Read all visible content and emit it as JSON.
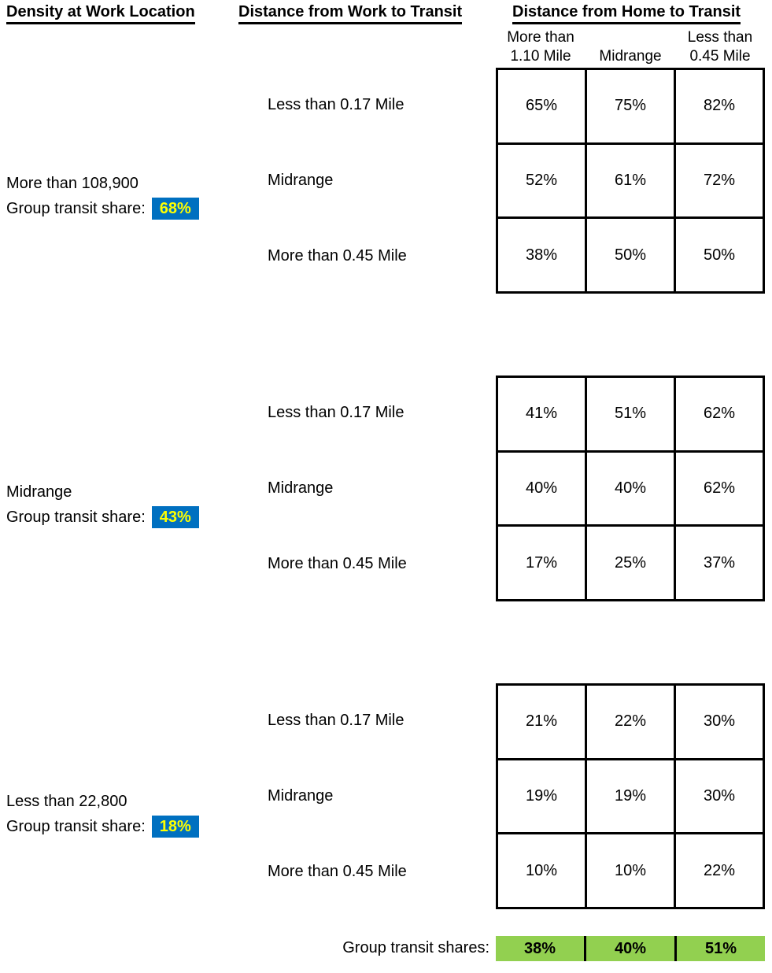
{
  "headers": {
    "density": "Density at Work Location",
    "work_transit": "Distance from Work to Transit",
    "home_transit": "Distance from Home to Transit"
  },
  "home_transit_columns": [
    {
      "line1": "More than",
      "line2": "1.10 Mile"
    },
    {
      "line1": "",
      "line2": "Midrange"
    },
    {
      "line1": "Less than",
      "line2": "0.45 Mile"
    }
  ],
  "work_transit_rows": [
    "Less than 0.17 Mile",
    "Midrange",
    "More than 0.45 Mile"
  ],
  "groups": [
    {
      "density_label": "More than 108,900",
      "share_label": "Group transit share:",
      "share_value": "68%",
      "matrix": [
        [
          "65%",
          "75%",
          "82%"
        ],
        [
          "52%",
          "61%",
          "72%"
        ],
        [
          "38%",
          "50%",
          "50%"
        ]
      ]
    },
    {
      "density_label": "Midrange",
      "share_label": "Group transit share:",
      "share_value": "43%",
      "matrix": [
        [
          "41%",
          "51%",
          "62%"
        ],
        [
          "40%",
          "40%",
          "62%"
        ],
        [
          "17%",
          "25%",
          "37%"
        ]
      ]
    },
    {
      "density_label": "Less than 22,800",
      "share_label": "Group transit share:",
      "share_value": "18%",
      "matrix": [
        [
          "21%",
          "22%",
          "30%"
        ],
        [
          "19%",
          "19%",
          "30%"
        ],
        [
          "10%",
          "10%",
          "22%"
        ]
      ]
    }
  ],
  "footer": {
    "label": "Group transit shares:",
    "values": [
      "38%",
      "40%",
      "51%"
    ]
  },
  "colors": {
    "badge_bg": "#0070C0",
    "badge_text": "#FFFF00",
    "footer_cell_bg": "#92D050",
    "border": "#000000"
  },
  "chart_data": {
    "type": "table",
    "group_dimension": "Density at Work Location",
    "row_dimension": "Distance from Work to Transit",
    "column_dimension": "Distance from Home to Transit",
    "columns": [
      "More than 1.10 Mile",
      "Midrange",
      "Less than 0.45 Mile"
    ],
    "rows": [
      "Less than 0.17 Mile",
      "Midrange",
      "More than 0.45 Mile"
    ],
    "groups": [
      {
        "label": "More than 108,900",
        "group_transit_share_pct": 68,
        "values_pct": [
          [
            65,
            75,
            82
          ],
          [
            52,
            61,
            72
          ],
          [
            38,
            50,
            50
          ]
        ]
      },
      {
        "label": "Midrange",
        "group_transit_share_pct": 43,
        "values_pct": [
          [
            41,
            51,
            62
          ],
          [
            40,
            40,
            62
          ],
          [
            17,
            25,
            37
          ]
        ]
      },
      {
        "label": "Less than 22,800",
        "group_transit_share_pct": 18,
        "values_pct": [
          [
            21,
            22,
            30
          ],
          [
            19,
            19,
            30
          ],
          [
            10,
            10,
            22
          ]
        ]
      }
    ],
    "column_group_transit_shares_pct": [
      38,
      40,
      51
    ],
    "layout": {
      "grid": "3 stacked 3x3 matrices",
      "highlight_group_share": "yellow text on blue",
      "highlight_column_share": "black bold text on green"
    }
  }
}
